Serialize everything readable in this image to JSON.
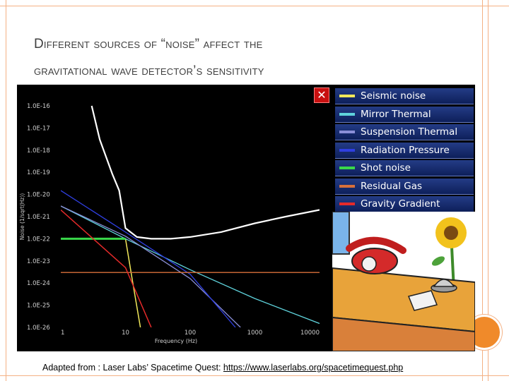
{
  "slide": {
    "title_line1": "Different sources of “noise” affect the",
    "title_line2": "gravitational wave detector’s sensitivity",
    "credit_text": "Adapted from : Laser Labs’ Spacetime Quest: ",
    "credit_url": "https://www.laserlabs.org/spacetimequest.php"
  },
  "ui": {
    "close_label": "✕"
  },
  "colors": {
    "accent": "#f4b184",
    "plot_background": "#000000",
    "axis_text": "#cfcfcf"
  },
  "chart_data": {
    "type": "line",
    "xlabel": "Frequency (Hz)",
    "ylabel": "Noise (1/sqrt(Hz))",
    "xscale": "log",
    "yscale": "log",
    "xlim": [
      1,
      10000
    ],
    "ylim": [
      1e-26,
      1e-16
    ],
    "x_tick_labels": [
      "1",
      "10",
      "100",
      "1000",
      "10000"
    ],
    "y_tick_labels": [
      "1.0E-16",
      "1.0E-17",
      "1.0E-18",
      "1.0E-19",
      "1.0E-20",
      "1.0E-21",
      "1.0E-22",
      "1.0E-23",
      "1.0E-24",
      "1.0E-25",
      "1.0E-26"
    ],
    "grid": false,
    "legend_position": "top-right",
    "series": [
      {
        "name": "Seismic noise",
        "color": "#f2e85a",
        "width": 1.5,
        "points": [
          [
            10,
            1e-22
          ],
          [
            13,
            1e-24
          ],
          [
            17,
            1e-26
          ]
        ]
      },
      {
        "name": "Mirror Thermal",
        "color": "#5fd3dc",
        "width": 1.3,
        "points": [
          [
            1,
            3e-21
          ],
          [
            10,
            1e-22
          ],
          [
            100,
            4e-24
          ],
          [
            1000,
            2e-25
          ],
          [
            10000,
            1.5e-26
          ]
        ]
      },
      {
        "name": "Suspension Thermal",
        "color": "#8a8fd8",
        "width": 1.3,
        "points": [
          [
            1,
            3e-21
          ],
          [
            10,
            1.3e-22
          ],
          [
            100,
            1.6e-24
          ],
          [
            600,
            1e-26
          ]
        ]
      },
      {
        "name": "Radiation Pressure",
        "color": "#2f3fe0",
        "width": 1.3,
        "points": [
          [
            1,
            1.5e-20
          ],
          [
            10,
            2e-22
          ],
          [
            100,
            2.5e-24
          ],
          [
            500,
            1e-26
          ]
        ]
      },
      {
        "name": "Shot noise",
        "color": "#39d84a",
        "width": 3,
        "points": [
          [
            1,
            1e-22
          ],
          [
            10,
            1e-22
          ]
        ]
      },
      {
        "name": "Residual Gas",
        "color": "#d9703a",
        "width": 1.3,
        "points": [
          [
            1,
            3e-24
          ],
          [
            10000,
            3e-24
          ]
        ]
      },
      {
        "name": "Gravity Gradient",
        "color": "#e52a2a",
        "width": 1.5,
        "points": [
          [
            1,
            2e-21
          ],
          [
            10,
            5e-24
          ],
          [
            25,
            1e-26
          ]
        ]
      },
      {
        "name": "",
        "color": "#ffffff",
        "width": 2.2,
        "points": [
          [
            3,
            1e-16
          ],
          [
            4,
            3e-18
          ],
          [
            5,
            5e-19
          ],
          [
            6.3,
            8e-20
          ],
          [
            8,
            1.5e-20
          ],
          [
            10,
            3e-22
          ],
          [
            15,
            1.2e-22
          ],
          [
            25,
            1e-22
          ],
          [
            50,
            1e-22
          ],
          [
            100,
            1.2e-22
          ],
          [
            300,
            2e-22
          ],
          [
            1000,
            5e-22
          ],
          [
            3000,
            1e-21
          ],
          [
            10000,
            2e-21
          ]
        ]
      }
    ]
  }
}
